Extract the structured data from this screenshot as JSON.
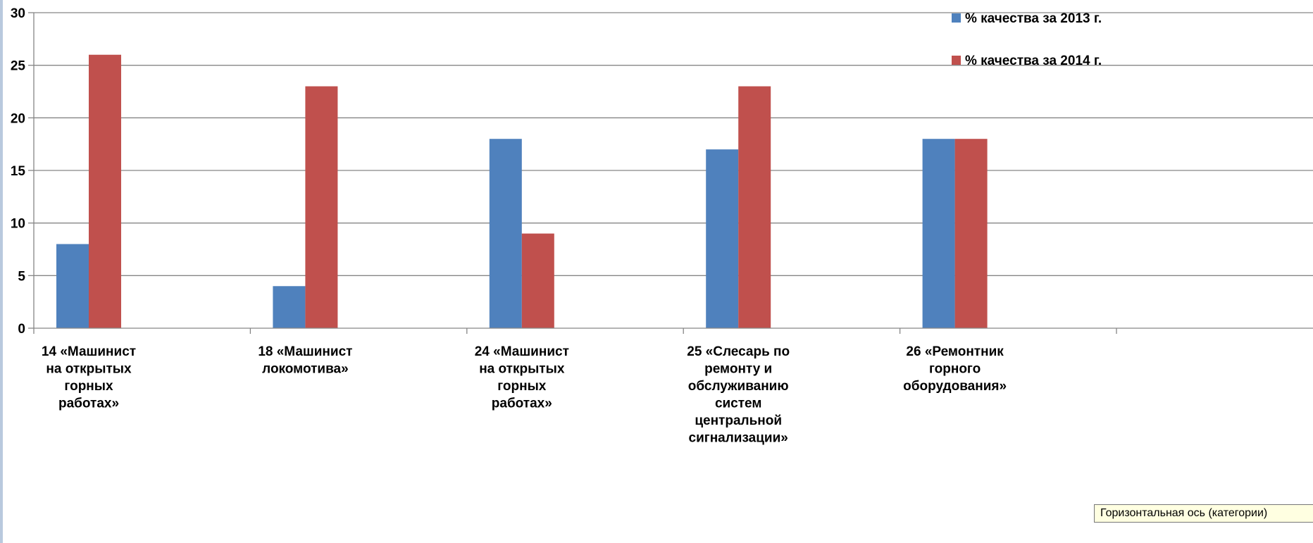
{
  "chart_data": {
    "type": "bar",
    "categories": [
      [
        "14 «Машинист",
        "на открытых",
        "горных",
        "работах»"
      ],
      [
        "18 «Машинист",
        "локомотива»"
      ],
      [
        "24 «Машинист",
        "на открытых",
        "горных",
        "работах»"
      ],
      [
        "25 «Слесарь по",
        "ремонту и",
        "обслуживанию",
        "систем",
        "центральной",
        "сигнализации»"
      ],
      [
        "26 «Ремонтник",
        "горного",
        "оборудования»"
      ]
    ],
    "series": [
      {
        "name": "% качества за 2013 г.",
        "color": "#4f81bd",
        "values": [
          8,
          4,
          18,
          17,
          18
        ]
      },
      {
        "name": "% качества за 2014 г.",
        "color": "#c0504d",
        "values": [
          26,
          23,
          9,
          23,
          18
        ]
      }
    ],
    "ylim": [
      0,
      30
    ],
    "yticks": [
      0,
      5,
      10,
      15,
      20,
      25,
      30
    ],
    "grid": true,
    "legend": "top-right"
  },
  "tooltip": "Горизонтальная ось (категории)"
}
